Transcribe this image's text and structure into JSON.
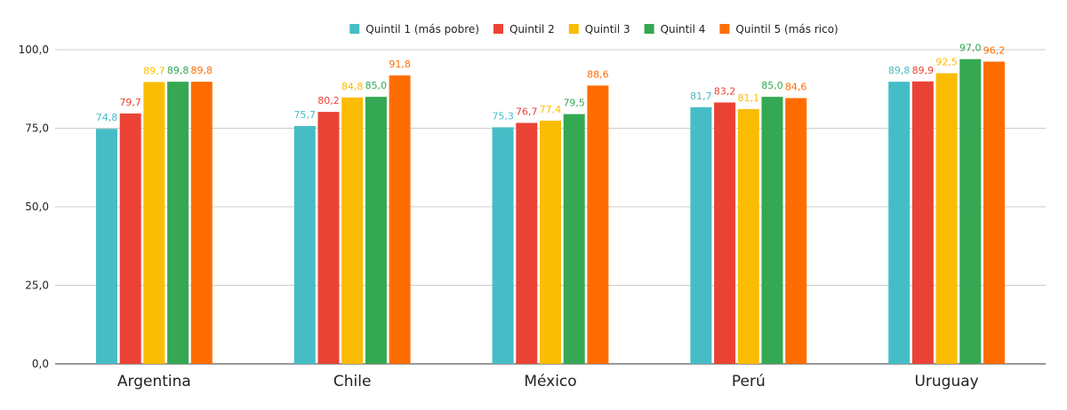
{
  "chart_data": {
    "type": "bar",
    "categories": [
      "Argentina",
      "Chile",
      "México",
      "Perú",
      "Uruguay"
    ],
    "series": [
      {
        "name": "Quintil 1 (más pobre)",
        "color": "#46bdc6",
        "values": [
          74.8,
          75.7,
          75.3,
          81.7,
          89.8
        ],
        "labels": [
          "74,8",
          "75,7",
          "75,3",
          "81,7",
          "89,8"
        ]
      },
      {
        "name": "Quintil 2",
        "color": "#ea4335",
        "values": [
          79.7,
          80.2,
          76.7,
          83.2,
          89.9
        ],
        "labels": [
          "79,7",
          "80,2",
          "76,7",
          "83,2",
          "89,9"
        ]
      },
      {
        "name": "Quintil 3",
        "color": "#fbbc04",
        "values": [
          89.7,
          84.8,
          77.4,
          81.1,
          92.5
        ],
        "labels": [
          "89,7",
          "84,8",
          "77,4",
          "81,1",
          "92,5"
        ]
      },
      {
        "name": "Quintil 4",
        "color": "#34a853",
        "values": [
          89.8,
          85.0,
          79.5,
          85.0,
          97.0
        ],
        "labels": [
          "89,8",
          "85,0",
          "79,5",
          "85,0",
          "97,0"
        ]
      },
      {
        "name": "Quintil 5 (más rico)",
        "color": "#ff6d01",
        "values": [
          89.8,
          91.8,
          88.6,
          84.6,
          96.2
        ],
        "labels": [
          "89,8",
          "91,8",
          "88,6",
          "84,6",
          "96,2"
        ]
      }
    ],
    "yticks": [
      0,
      25,
      50,
      75,
      100
    ],
    "ytick_labels": [
      "0,0",
      "25,0",
      "50,0",
      "75,0",
      "100,0"
    ],
    "ylim": [
      0,
      100
    ],
    "grid": true,
    "legend_position": "top-center"
  }
}
